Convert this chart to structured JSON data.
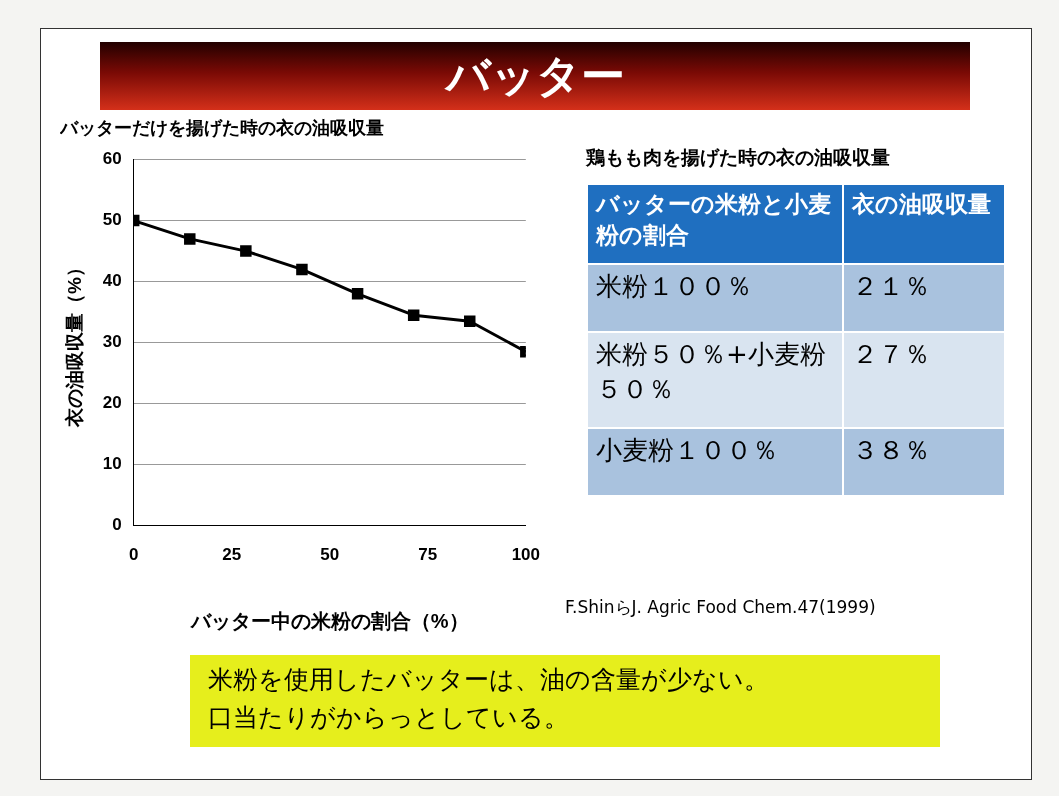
{
  "chart_data": [
    {
      "type": "other",
      "title": "バッター",
      "annotations": [
        "米粉を使用したバッターは、油の含量が少ない。",
        "口当たりがからっとしている。"
      ]
    },
    {
      "type": "line",
      "title": "バッターだけを揚げた時の衣の油吸収量",
      "xlabel": "バッター中の米粉の割合（%）",
      "ylabel": "衣の油吸収量（%）",
      "x": [
        0,
        14.3,
        28.6,
        42.9,
        57.1,
        71.4,
        85.7,
        100
      ],
      "values": [
        50,
        47,
        45,
        42,
        38,
        34.5,
        33.5,
        28.5
      ],
      "color": "#000000",
      "xlim": [
        0,
        100
      ],
      "xticks": [
        0,
        25,
        50,
        75,
        100
      ],
      "ylim": [
        0,
        60
      ],
      "yticks": [
        0,
        10,
        20,
        30,
        40,
        50,
        60
      ],
      "grid": "y",
      "marker": "square",
      "line_style": "solid",
      "annotations": [
        "F.ShinらJ. Agric Food Chem.47(1999)"
      ]
    },
    {
      "type": "other",
      "title": "鶏もも肉を揚げた時の衣の油吸収量",
      "annotations": [
        "バッターの米粉と小麦粉の割合",
        "衣の油吸収量",
        "米粉１００％",
        "２１％",
        "米粉５０％+小麦粉５０％",
        "２７％",
        "小麦粉１００％",
        "３８％"
      ]
    }
  ]
}
